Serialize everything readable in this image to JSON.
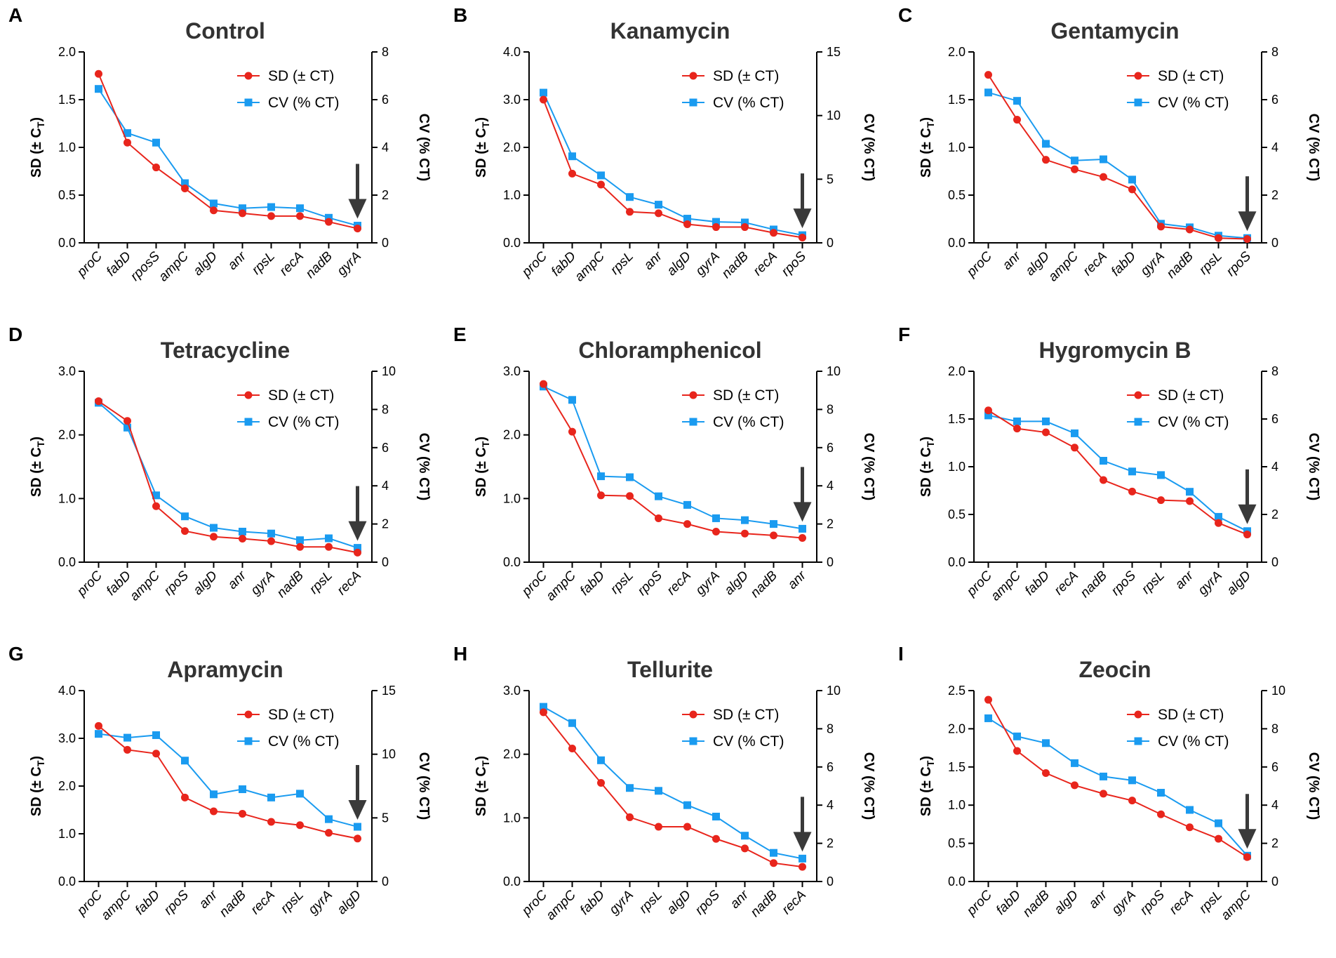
{
  "figure": {
    "legend": {
      "sd_label": "SD (± CT)",
      "cv_label": "CV (% CT)"
    },
    "y_left_label": "SD (± C",
    "y_left_sub": "T",
    "y_left_close": ")",
    "y_right_label": "CV (% CT)",
    "colors": {
      "sd": "#e8251c",
      "cv": "#1a9bf0",
      "axis": "#000000",
      "arrow": "#3a3a3a"
    }
  },
  "chart_data": [
    {
      "letter": "A",
      "title": "Control",
      "type": "line",
      "categories": [
        "proC",
        "fabD",
        "rposS",
        "ampC",
        "algD",
        "anr",
        "rpsL",
        "recA",
        "nadB",
        "gyrA"
      ],
      "ylim_left": [
        0,
        2.0
      ],
      "yticks_left": [
        "0.0",
        "0.5",
        "1.0",
        "1.5",
        "2.0"
      ],
      "ylim_right": [
        0,
        8
      ],
      "yticks_right": [
        "0",
        "2",
        "4",
        "6",
        "8"
      ],
      "series": [
        {
          "name": "SD (± CT)",
          "axis": "left",
          "values": [
            1.77,
            1.05,
            0.79,
            0.57,
            0.34,
            0.31,
            0.28,
            0.28,
            0.22,
            0.15
          ]
        },
        {
          "name": "CV (% CT)",
          "axis": "right",
          "values": [
            6.45,
            4.6,
            4.2,
            2.5,
            1.65,
            1.45,
            1.5,
            1.45,
            1.05,
            0.72
          ]
        }
      ],
      "arrow_at": 9
    },
    {
      "letter": "B",
      "title": "Kanamycin",
      "type": "line",
      "categories": [
        "proC",
        "fabD",
        "ampC",
        "rpsL",
        "anr",
        "algD",
        "gyrA",
        "nadB",
        "recA",
        "rpoS"
      ],
      "ylim_left": [
        0,
        4.0
      ],
      "yticks_left": [
        "0.0",
        "1.0",
        "2.0",
        "3.0",
        "4.0"
      ],
      "ylim_right": [
        0,
        15
      ],
      "yticks_right": [
        "0",
        "5",
        "10",
        "15"
      ],
      "series": [
        {
          "name": "SD (± CT)",
          "axis": "left",
          "values": [
            3.0,
            1.45,
            1.22,
            0.65,
            0.62,
            0.39,
            0.33,
            0.33,
            0.21,
            0.11
          ]
        },
        {
          "name": "CV (% CT)",
          "axis": "right",
          "values": [
            11.8,
            6.8,
            5.3,
            3.6,
            3.0,
            1.9,
            1.65,
            1.6,
            1.05,
            0.6
          ]
        }
      ],
      "arrow_at": 9
    },
    {
      "letter": "C",
      "title": "Gentamycin",
      "type": "line",
      "categories": [
        "proC",
        "anr",
        "algD",
        "ampC",
        "recA",
        "fabD",
        "gyrA",
        "nadB",
        "rpsL",
        "rpoS"
      ],
      "ylim_left": [
        0,
        2.0
      ],
      "yticks_left": [
        "0.0",
        "0.5",
        "1.0",
        "1.5",
        "2.0"
      ],
      "ylim_right": [
        0,
        8
      ],
      "yticks_right": [
        "0",
        "2",
        "4",
        "6",
        "8"
      ],
      "series": [
        {
          "name": "SD (± CT)",
          "axis": "left",
          "values": [
            1.76,
            1.29,
            0.87,
            0.77,
            0.69,
            0.56,
            0.17,
            0.14,
            0.05,
            0.04
          ]
        },
        {
          "name": "CV (% CT)",
          "axis": "right",
          "values": [
            6.3,
            5.95,
            4.15,
            3.45,
            3.5,
            2.65,
            0.8,
            0.65,
            0.3,
            0.2
          ]
        }
      ],
      "arrow_at": 9
    },
    {
      "letter": "D",
      "title": "Tetracycline",
      "type": "line",
      "categories": [
        "proC",
        "fabD",
        "ampC",
        "rpoS",
        "algD",
        "anr",
        "gyrA",
        "nadB",
        "rpsL",
        "recA"
      ],
      "ylim_left": [
        0,
        3.0
      ],
      "yticks_left": [
        "0.0",
        "1.0",
        "2.0",
        "3.0"
      ],
      "ylim_right": [
        0,
        10
      ],
      "yticks_right": [
        "0",
        "2",
        "4",
        "6",
        "8",
        "10"
      ],
      "series": [
        {
          "name": "SD (± CT)",
          "axis": "left",
          "values": [
            2.53,
            2.22,
            0.88,
            0.49,
            0.4,
            0.37,
            0.33,
            0.24,
            0.24,
            0.15
          ]
        },
        {
          "name": "CV (% CT)",
          "axis": "right",
          "values": [
            8.35,
            7.05,
            3.5,
            2.4,
            1.8,
            1.6,
            1.5,
            1.15,
            1.25,
            0.75
          ]
        }
      ],
      "arrow_at": 9
    },
    {
      "letter": "E",
      "title": "Chloramphenicol",
      "type": "line",
      "categories": [
        "proC",
        "ampC",
        "fabD",
        "rpsL",
        "rpoS",
        "recA",
        "gyrA",
        "algD",
        "nadB",
        "anr"
      ],
      "ylim_left": [
        0,
        3.0
      ],
      "yticks_left": [
        "0.0",
        "1.0",
        "2.0",
        "3.0"
      ],
      "ylim_right": [
        0,
        10
      ],
      "yticks_right": [
        "0",
        "2",
        "4",
        "6",
        "8",
        "10"
      ],
      "series": [
        {
          "name": "SD (± CT)",
          "axis": "left",
          "values": [
            2.8,
            2.05,
            1.05,
            1.04,
            0.69,
            0.6,
            0.48,
            0.45,
            0.42,
            0.38
          ]
        },
        {
          "name": "CV (% CT)",
          "axis": "right",
          "values": [
            9.2,
            8.5,
            4.5,
            4.45,
            3.45,
            3.0,
            2.3,
            2.2,
            2.0,
            1.75
          ]
        }
      ],
      "arrow_at": 9
    },
    {
      "letter": "F",
      "title": "Hygromycin B",
      "type": "line",
      "categories": [
        "proC",
        "ampC",
        "fabD",
        "recA",
        "nadB",
        "rpoS",
        "rpsL",
        "anr",
        "gyrA",
        "algD"
      ],
      "ylim_left": [
        0,
        2.0
      ],
      "yticks_left": [
        "0.0",
        "0.5",
        "1.0",
        "1.5",
        "2.0"
      ],
      "ylim_right": [
        0,
        8
      ],
      "yticks_right": [
        "0",
        "2",
        "4",
        "6",
        "8"
      ],
      "series": [
        {
          "name": "SD (± CT)",
          "axis": "left",
          "values": [
            1.59,
            1.4,
            1.36,
            1.2,
            0.86,
            0.74,
            0.65,
            0.64,
            0.41,
            0.29
          ]
        },
        {
          "name": "CV (% CT)",
          "axis": "right",
          "values": [
            6.15,
            5.9,
            5.9,
            5.4,
            4.25,
            3.8,
            3.65,
            2.95,
            1.9,
            1.3
          ]
        }
      ],
      "arrow_at": 9
    },
    {
      "letter": "G",
      "title": "Apramycin",
      "type": "line",
      "categories": [
        "proC",
        "ampC",
        "fabD",
        "rpoS",
        "anr",
        "nadB",
        "recA",
        "rpsL",
        "gyrA",
        "algD"
      ],
      "ylim_left": [
        0,
        4.0
      ],
      "yticks_left": [
        "0.0",
        "1.0",
        "2.0",
        "3.0",
        "4.0"
      ],
      "ylim_right": [
        0,
        15
      ],
      "yticks_right": [
        "0",
        "5",
        "10",
        "15"
      ],
      "series": [
        {
          "name": "SD (± CT)",
          "axis": "left",
          "values": [
            3.26,
            2.76,
            2.68,
            1.76,
            1.47,
            1.42,
            1.25,
            1.18,
            1.02,
            0.9
          ]
        },
        {
          "name": "CV (% CT)",
          "axis": "right",
          "values": [
            11.6,
            11.3,
            11.5,
            9.5,
            6.85,
            7.25,
            6.6,
            6.9,
            4.9,
            4.3
          ]
        }
      ],
      "arrow_at": 9
    },
    {
      "letter": "H",
      "title": "Tellurite",
      "type": "line",
      "categories": [
        "proC",
        "ampC",
        "fabD",
        "gyrA",
        "rpsL",
        "algD",
        "rpoS",
        "anr",
        "nadB",
        "recA"
      ],
      "ylim_left": [
        0,
        3.0
      ],
      "yticks_left": [
        "0.0",
        "1.0",
        "2.0",
        "3.0"
      ],
      "ylim_right": [
        0,
        10
      ],
      "yticks_right": [
        "0",
        "2",
        "4",
        "6",
        "8",
        "10"
      ],
      "series": [
        {
          "name": "SD (± CT)",
          "axis": "left",
          "values": [
            2.66,
            2.09,
            1.55,
            1.01,
            0.86,
            0.86,
            0.67,
            0.52,
            0.29,
            0.23
          ]
        },
        {
          "name": "CV (% CT)",
          "axis": "right",
          "values": [
            9.15,
            8.3,
            6.35,
            4.9,
            4.75,
            4.0,
            3.4,
            2.4,
            1.5,
            1.2
          ]
        }
      ],
      "arrow_at": 9
    },
    {
      "letter": "I",
      "title": "Zeocin",
      "type": "line",
      "categories": [
        "proC",
        "fabD",
        "nadB",
        "algD",
        "anr",
        "gyrA",
        "rpoS",
        "recA",
        "rpsL",
        "ampC"
      ],
      "ylim_left": [
        0,
        2.5
      ],
      "yticks_left": [
        "0.0",
        "0.5",
        "1.0",
        "1.5",
        "2.0",
        "2.5"
      ],
      "ylim_right": [
        0,
        10
      ],
      "yticks_right": [
        "0",
        "2",
        "4",
        "6",
        "8",
        "10"
      ],
      "series": [
        {
          "name": "SD (± CT)",
          "axis": "left",
          "values": [
            2.38,
            1.71,
            1.42,
            1.26,
            1.15,
            1.06,
            0.88,
            0.71,
            0.56,
            0.32
          ]
        },
        {
          "name": "CV (% CT)",
          "axis": "right",
          "values": [
            8.55,
            7.6,
            7.25,
            6.2,
            5.5,
            5.3,
            4.65,
            3.75,
            3.05,
            1.35
          ]
        }
      ],
      "arrow_at": 9
    }
  ]
}
